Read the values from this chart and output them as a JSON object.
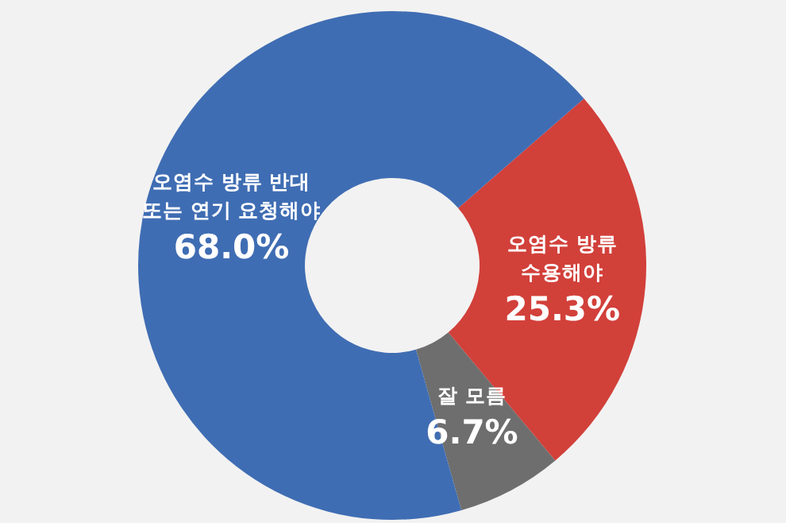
{
  "chart_data": {
    "type": "donut",
    "categories": [
      "오염수 방류\n수용해야",
      "잘 모름",
      "오염수 방류 반대\n또는 연기 요청해야"
    ],
    "values": [
      25.3,
      6.7,
      68.0
    ],
    "colors": [
      "#d2403a",
      "#6e6e6e",
      "#3f6db3"
    ],
    "value_labels": [
      "25.3%",
      "6.7%",
      "68.0%"
    ],
    "legend": false
  }
}
